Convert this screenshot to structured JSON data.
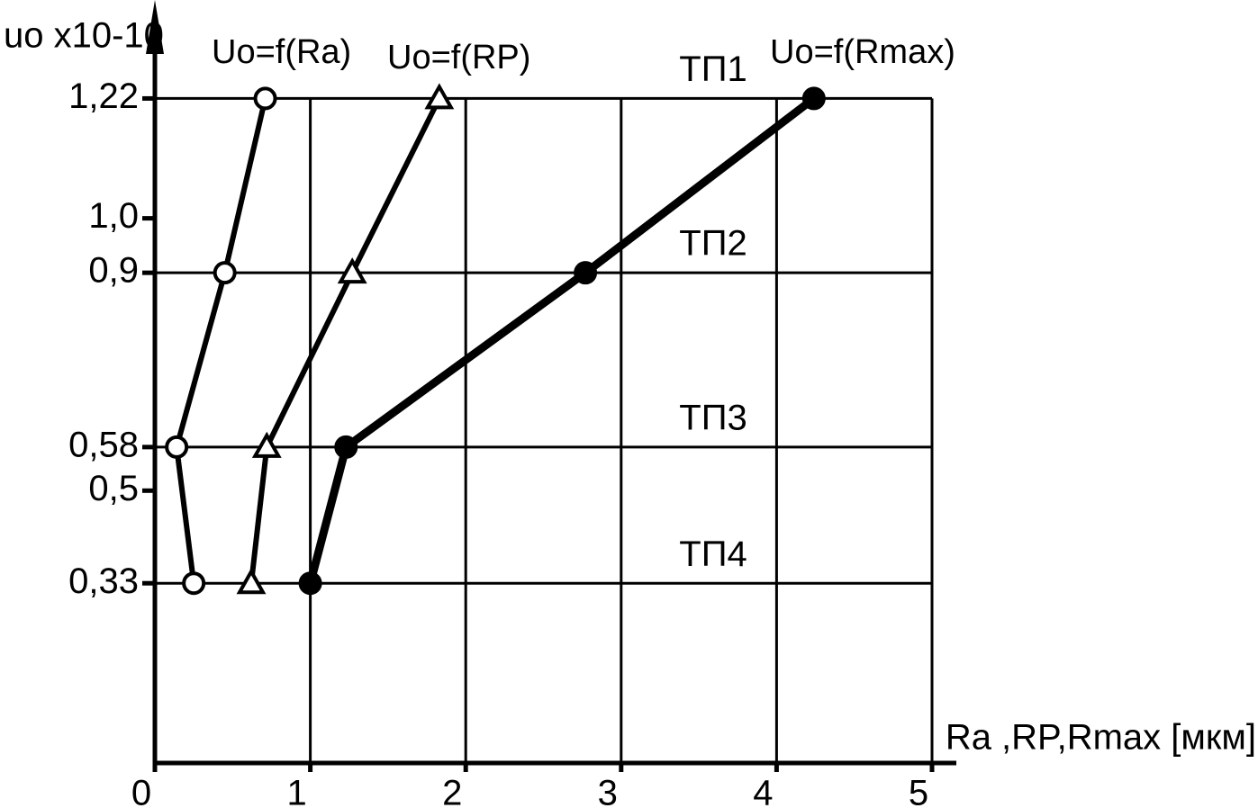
{
  "chart_data": {
    "type": "line",
    "y_label": "uo x10-10",
    "x_label": "Ra ,RP,Rmax [мкм]",
    "xlim": [
      0,
      5
    ],
    "xticks": [
      0,
      1,
      2,
      3,
      4,
      5
    ],
    "ylim": [
      0,
      1.3
    ],
    "yticks": [
      {
        "value": 0.33,
        "label": "0,33"
      },
      {
        "value": 0.5,
        "label": "0,5"
      },
      {
        "value": 0.58,
        "label": "0,58"
      },
      {
        "value": 0.9,
        "label": "0,9"
      },
      {
        "value": 1.0,
        "label": "1,0"
      },
      {
        "value": 1.22,
        "label": "1,22"
      }
    ],
    "ygrid": [
      0.33,
      0.58,
      0.9,
      1.22
    ],
    "grid": true,
    "series": [
      {
        "name": "Uo=f(Ra)",
        "color": "#000000",
        "marker": "open-circle",
        "x": [
          0.71,
          0.45,
          0.14,
          0.25
        ],
        "values": [
          1.22,
          0.9,
          0.58,
          0.33
        ]
      },
      {
        "name": "Uo=f(RP)",
        "color": "#000000",
        "marker": "open-triangle",
        "x": [
          1.83,
          1.27,
          0.72,
          0.62
        ],
        "values": [
          1.22,
          0.9,
          0.58,
          0.33
        ]
      },
      {
        "name": "Uo=f(Rmax)",
        "color": "#000000",
        "marker": "filled-circle",
        "x": [
          4.24,
          2.77,
          1.23,
          1.0
        ],
        "values": [
          1.22,
          0.9,
          0.58,
          0.33
        ]
      }
    ],
    "annotations": [
      "ТП1",
      "ТП2",
      "ТП3",
      "ТП4"
    ]
  }
}
